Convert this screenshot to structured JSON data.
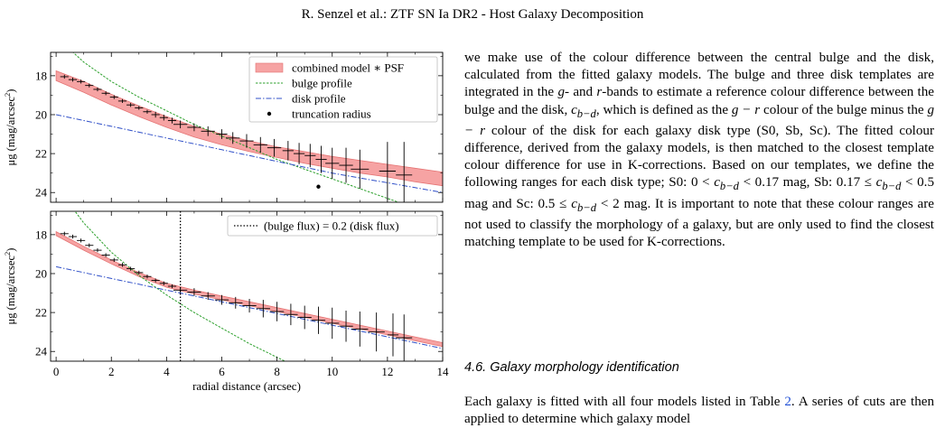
{
  "header": "R. Senzel et al.: ZTF SN Ia DR2 - Host Galaxy Decomposition",
  "colors": {
    "band": "#f6a3a3",
    "band_edge": "#e57373",
    "bulge": "#2ca02c",
    "disk": "#3050c8",
    "points": "#000000",
    "link": "#1f4fd6"
  },
  "figure": {
    "panels": [
      {
        "ylabel_main": "μg (mag/arcsec",
        "ylabel_sup": "2",
        "ylabel_close": ")",
        "legend": [
          "combined model ∗ PSF",
          "bulge profile",
          "disk profile",
          "truncation radius"
        ]
      },
      {
        "ylabel_main": "μg (mag/arcsec",
        "ylabel_sup": "2",
        "ylabel_close": ")",
        "legend": [
          "(bulge flux) = 0.2 (disk flux)"
        ]
      }
    ],
    "xlabel": "radial distance (arcsec)"
  },
  "chart_data": [
    {
      "type": "line",
      "xlim": [
        -0.2,
        14
      ],
      "ylim": [
        24.5,
        16.8
      ],
      "xticks": [
        "0",
        "2",
        "4",
        "6",
        "8",
        "10",
        "12",
        "14"
      ],
      "yticks": [
        "18",
        "20",
        "22",
        "24"
      ],
      "points_x": [
        0.3,
        0.6,
        0.9,
        1.2,
        1.5,
        1.8,
        2.1,
        2.4,
        2.7,
        3.0,
        3.3,
        3.6,
        3.9,
        4.2,
        4.5,
        5.0,
        5.5,
        6.0,
        6.4,
        6.9,
        7.4,
        7.9,
        8.4,
        8.8,
        9.2,
        9.6,
        10.0,
        10.5,
        11.0,
        12.0,
        12.6
      ],
      "points_y": [
        18.05,
        18.2,
        18.3,
        18.5,
        18.7,
        18.9,
        19.1,
        19.3,
        19.5,
        19.65,
        19.85,
        20.0,
        20.15,
        20.3,
        20.5,
        20.65,
        20.85,
        21.0,
        21.2,
        21.35,
        21.55,
        21.7,
        21.85,
        22.0,
        22.1,
        22.3,
        22.5,
        22.6,
        22.8,
        22.9,
        23.1
      ],
      "error_half": [
        0.1,
        0.1,
        0.1,
        0.1,
        0.1,
        0.1,
        0.1,
        0.1,
        0.1,
        0.1,
        0.1,
        0.15,
        0.15,
        0.15,
        0.2,
        0.2,
        0.25,
        0.25,
        0.3,
        0.35,
        0.4,
        0.45,
        0.5,
        0.55,
        0.6,
        0.7,
        0.8,
        0.9,
        1.0,
        1.5,
        1.7
      ],
      "band_x": [
        0,
        1,
        2,
        3,
        4,
        5,
        6,
        7,
        8,
        9,
        10,
        11,
        12,
        13,
        14
      ],
      "band_lo": [
        17.75,
        18.3,
        18.95,
        19.55,
        20.1,
        20.6,
        21.0,
        21.35,
        21.65,
        21.9,
        22.15,
        22.35,
        22.55,
        22.75,
        22.95
      ],
      "band_hi": [
        18.25,
        18.85,
        19.5,
        20.1,
        20.65,
        21.15,
        21.55,
        21.9,
        22.2,
        22.5,
        22.75,
        23.0,
        23.2,
        23.45,
        23.65
      ],
      "bulge_y": [
        16.0,
        17.3,
        18.3,
        19.1,
        19.8,
        20.5,
        21.1,
        21.7,
        22.3,
        22.8,
        23.3,
        23.8,
        24.3,
        24.8,
        25.3
      ],
      "disk_y": [
        20.0,
        20.3,
        20.6,
        20.9,
        21.2,
        21.5,
        21.8,
        22.1,
        22.4,
        22.7,
        23.0,
        23.25,
        23.5,
        23.75,
        24.0
      ],
      "truncation": {
        "x": 9.5,
        "y": 23.7
      }
    },
    {
      "type": "line",
      "xlim": [
        -0.2,
        14
      ],
      "ylim": [
        24.5,
        16.8
      ],
      "xticks": [
        "0",
        "2",
        "4",
        "6",
        "8",
        "10",
        "12",
        "14"
      ],
      "yticks": [
        "18",
        "20",
        "22",
        "24"
      ],
      "xlabel": "radial distance (arcsec)",
      "points_x": [
        0.3,
        0.6,
        0.9,
        1.2,
        1.5,
        1.8,
        2.1,
        2.4,
        2.7,
        3.0,
        3.3,
        3.6,
        3.9,
        4.2,
        4.5,
        5.0,
        5.5,
        6.0,
        6.5,
        7.0,
        7.5,
        8.0,
        8.5,
        9.0,
        9.5,
        10.0,
        10.5,
        11.0,
        11.6,
        12.2,
        12.6
      ],
      "points_y": [
        17.95,
        18.1,
        18.3,
        18.55,
        18.8,
        19.05,
        19.3,
        19.55,
        19.75,
        19.95,
        20.15,
        20.35,
        20.5,
        20.65,
        20.85,
        20.95,
        21.15,
        21.35,
        21.5,
        21.65,
        21.8,
        21.95,
        22.1,
        22.25,
        22.4,
        22.55,
        22.7,
        22.85,
        23.0,
        23.15,
        23.3
      ],
      "error_half": [
        0.1,
        0.1,
        0.1,
        0.1,
        0.1,
        0.1,
        0.1,
        0.1,
        0.1,
        0.1,
        0.1,
        0.1,
        0.1,
        0.1,
        0.15,
        0.2,
        0.2,
        0.25,
        0.3,
        0.35,
        0.45,
        0.5,
        0.55,
        0.6,
        0.7,
        0.8,
        0.8,
        0.9,
        1.0,
        1.1,
        1.2
      ],
      "band_x": [
        0,
        1,
        2,
        3,
        4,
        5,
        6,
        7,
        8,
        9,
        10,
        11,
        12,
        13,
        14
      ],
      "band_lo": [
        17.85,
        18.6,
        19.3,
        19.95,
        20.5,
        20.85,
        21.15,
        21.45,
        21.75,
        22.05,
        22.35,
        22.65,
        22.95,
        23.25,
        23.55
      ],
      "band_hi": [
        18.05,
        18.8,
        19.5,
        20.15,
        20.7,
        21.05,
        21.35,
        21.65,
        21.95,
        22.25,
        22.55,
        22.85,
        23.15,
        23.45,
        23.75
      ],
      "bulge_y": [
        15.5,
        17.4,
        18.9,
        20.1,
        21.1,
        22.0,
        22.8,
        23.6,
        24.3,
        25.0,
        25.7,
        26.4,
        27.0,
        27.6,
        28.2
      ],
      "disk_y": [
        19.65,
        19.95,
        20.25,
        20.55,
        20.85,
        21.15,
        21.45,
        21.75,
        22.05,
        22.35,
        22.65,
        22.95,
        23.25,
        23.55,
        23.85
      ],
      "vline_x": 4.5
    }
  ],
  "text": {
    "para1": {
      "t1": "we make use of the colour difference between the central bulge and the disk, calculated from the fitted galaxy models. The bulge and three disk templates are integrated in the ",
      "g": "g",
      "t2": "- and ",
      "r": "r",
      "t3": "-bands to estimate a reference colour difference between the bulge and the disk, ",
      "c1": "c",
      "c1sub": "b−d",
      "t4": ", which is defined as the ",
      "gr1": "g − r",
      "t5": " colour of the bulge minus the ",
      "gr2": "g − r",
      "t6": " colour of the disk for each galaxy disk type (S0, Sb, Sc). The fitted colour difference, derived from the galaxy models, is then matched to the closest template colour difference for use in K-corrections. Based on our templates, we define the following ranges for each disk type; S0: 0 < ",
      "c2": "c",
      "c2sub": "b−d",
      "t7": " < 0.17 mag, Sb: 0.17 ≤ ",
      "c3": "c",
      "c3sub": "b−d",
      "t8": " < 0.5 mag and Sc: 0.5 ≤ ",
      "c4": "c",
      "c4sub": "b−d",
      "t9": " < 2 mag. It is important to note that these colour ranges are not used to classify the morphology of a galaxy, but are only used to find the closest matching template to be used for K-corrections."
    },
    "section_heading": "4.6. Galaxy morphology identification",
    "para2": {
      "t1": "Each galaxy is fitted with all four models listed in Table ",
      "ref": "2",
      "t2": ". A series of cuts are then applied to determine which galaxy model"
    }
  }
}
